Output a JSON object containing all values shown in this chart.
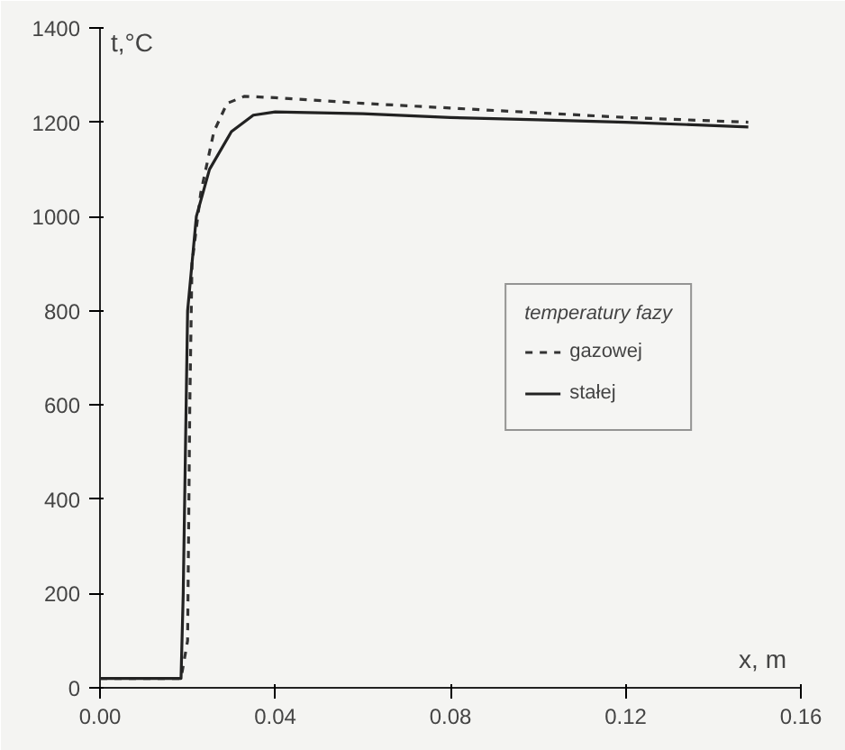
{
  "chart_data": {
    "type": "line",
    "xlabel": "x, m",
    "ylabel": "t,°C",
    "legend_title": "temperatury fazy",
    "xlim": [
      0,
      0.16
    ],
    "ylim": [
      0,
      1400
    ],
    "xticks": [
      {
        "value": 0,
        "label": "0.00"
      },
      0.04,
      0.08,
      0.12,
      0.16
    ],
    "yticks": [
      0,
      200,
      400,
      600,
      800,
      1000,
      1200,
      1400
    ],
    "grid": false,
    "legend": "right",
    "series": [
      {
        "name": "gazowej",
        "color": "#333333",
        "line_style": "dashed",
        "x": [
          0,
          0.0185,
          0.02,
          0.0205,
          0.021,
          0.023,
          0.026,
          0.029,
          0.033,
          0.04,
          0.06,
          0.08,
          0.1,
          0.12,
          0.148
        ],
        "values": [
          20,
          20,
          100,
          600,
          900,
          1050,
          1180,
          1240,
          1255,
          1252,
          1240,
          1230,
          1220,
          1210,
          1200
        ]
      },
      {
        "name": "stałej",
        "color": "#222222",
        "line_style": "solid",
        "x": [
          0,
          0.0185,
          0.019,
          0.0195,
          0.02,
          0.022,
          0.025,
          0.03,
          0.035,
          0.04,
          0.06,
          0.08,
          0.1,
          0.12,
          0.148
        ],
        "values": [
          20,
          20,
          200,
          500,
          800,
          1000,
          1100,
          1180,
          1215,
          1222,
          1218,
          1210,
          1205,
          1200,
          1190
        ]
      }
    ]
  }
}
